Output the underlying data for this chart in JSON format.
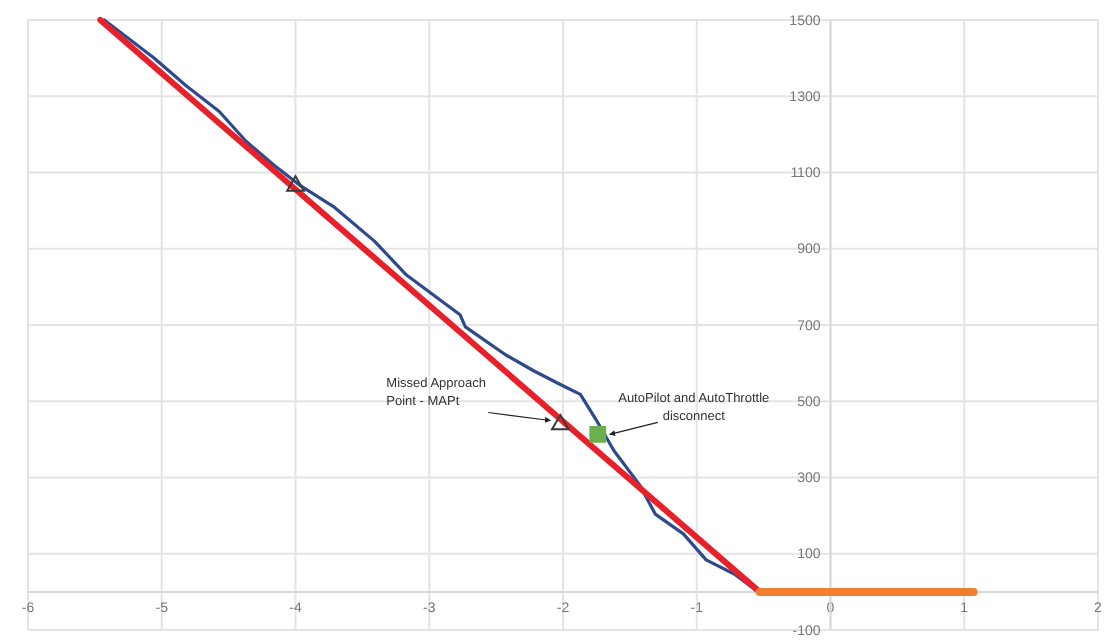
{
  "chart_data": {
    "type": "line",
    "xlim": [
      -6,
      2
    ],
    "xticks": [
      -6,
      -5,
      -4,
      -3,
      -2,
      -1,
      0,
      1,
      2
    ],
    "ylim": [
      -100,
      1500
    ],
    "yticks": [
      -100,
      100,
      300,
      500,
      700,
      900,
      1100,
      1300,
      1500
    ],
    "grid": true,
    "series": [
      {
        "color": "#2e4a8c",
        "x": [
          -5.43,
          -5.06,
          -4.82,
          -4.57,
          -4.37,
          -4.16,
          -3.97,
          -3.71,
          -3.41,
          -3.17,
          -2.77,
          -2.73,
          -2.43,
          -2.22,
          -2.02,
          -1.87,
          -1.75,
          -1.62,
          -1.43,
          -1.31,
          -1.1,
          -0.93,
          -0.72,
          -0.56
        ],
        "values": [
          1500,
          1401,
          1328,
          1260,
          1182,
          1119,
          1067,
          1009,
          920,
          831,
          727,
          695,
          622,
          580,
          544,
          518,
          450,
          371,
          282,
          204,
          152,
          84,
          47,
          5
        ]
      },
      {
        "color": "#e8202a",
        "x": [
          -5.46,
          -0.53
        ],
        "values": [
          1500,
          0
        ]
      },
      {
        "color": "#f08030",
        "x": [
          -0.53,
          1.07
        ],
        "values": [
          0,
          0
        ]
      },
      {
        "type": "scatter",
        "color": "#3a3a3a",
        "marker": "triangle",
        "x": [
          -4.0,
          -2.02
        ],
        "values": [
          1065,
          439
        ]
      },
      {
        "type": "scatter",
        "color": "#6ab04c",
        "marker": "square",
        "x": [
          -1.74
        ],
        "values": [
          413
        ]
      }
    ],
    "annotations": [
      {
        "text": "Missed Approach Point - MAPt",
        "x": -2.02,
        "y": 439
      },
      {
        "text": "AutoPilot and AutoThrottle disconnect",
        "x": -1.74,
        "y": 413
      }
    ]
  }
}
